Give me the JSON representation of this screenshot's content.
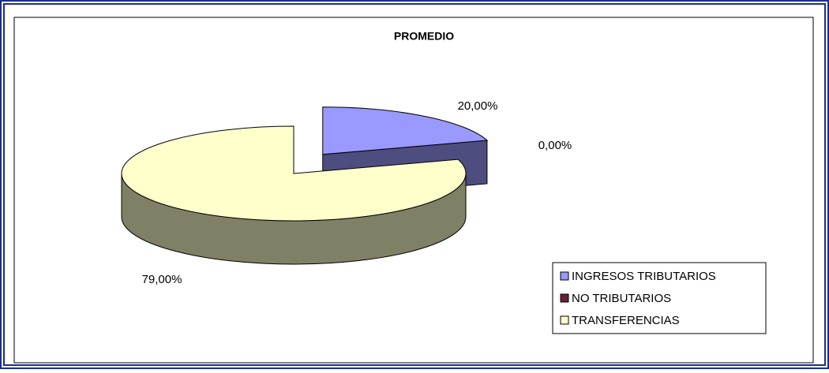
{
  "chart_data": {
    "type": "pie",
    "title": "PROMEDIO",
    "categories": [
      "INGRESOS TRIBUTARIOS",
      "NO TRIBUTARIOS",
      "TRANSFERENCIAS"
    ],
    "values": [
      20,
      0,
      79
    ],
    "value_labels": [
      "20,00%",
      "0,00%",
      "79,00%"
    ],
    "colors": [
      "#9999ff",
      "#6b1e3a",
      "#ffffcc"
    ],
    "legend": "bottom-right"
  }
}
